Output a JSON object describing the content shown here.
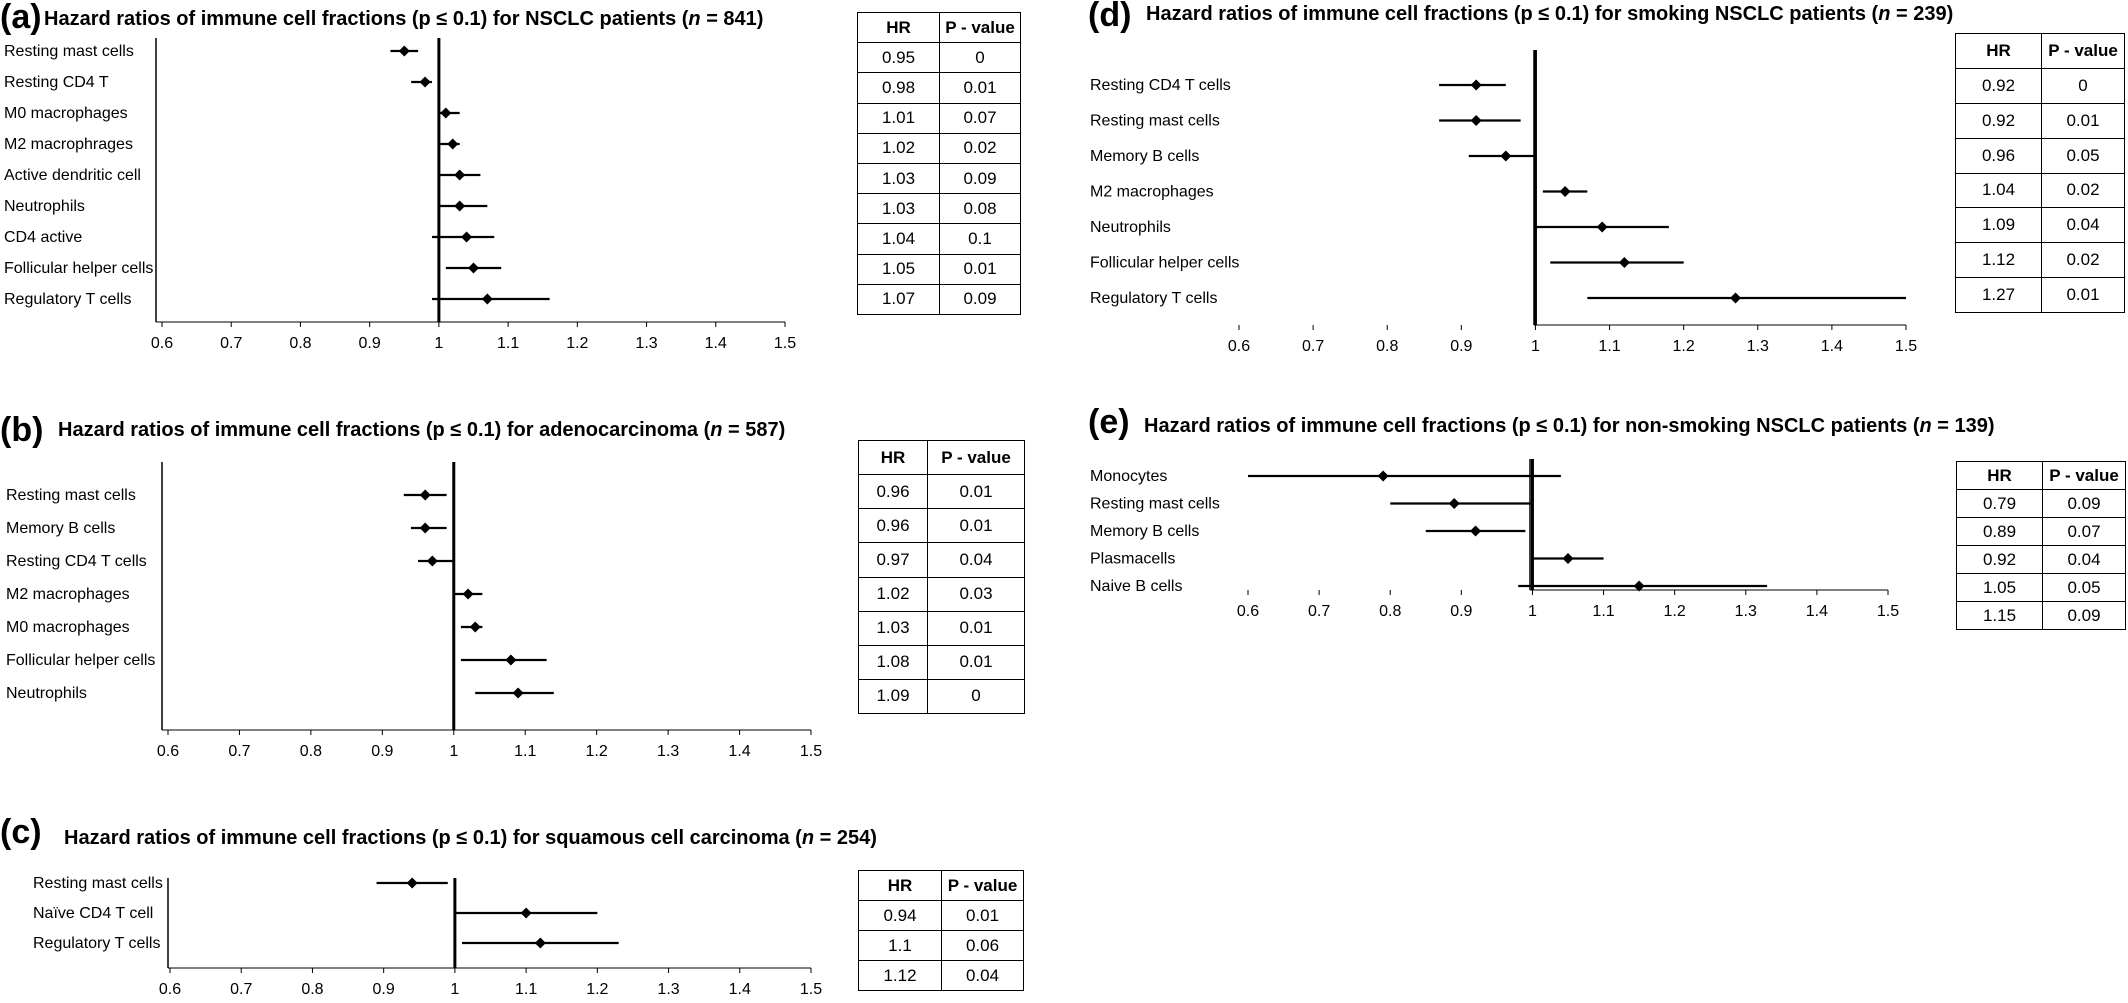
{
  "chart_data": [
    {
      "id": "a",
      "type": "forest",
      "panel_letter": "(a)",
      "title": "Hazard ratios of immune cell fractions (p ≤ 0.1) for NSCLC patients (n  = 841)",
      "title_pre": "Hazard ratios of immune cell fractions (p ≤ 0.1) for NSCLC patients (",
      "title_n": "n",
      "title_post": "  = 841)",
      "xticks": [
        "0.6",
        "0.7",
        "0.8",
        "0.9",
        "1",
        "1.1",
        "1.2",
        "1.3",
        "1.4",
        "1.5"
      ],
      "xlim": [
        0.6,
        1.5
      ],
      "reference_line": 1,
      "categories": [
        "Resting mast cells",
        "Resting CD4 T",
        "M0 macrophages",
        "M2 macrophrages",
        "Active dendritic cell",
        "Neutrophils",
        "CD4 active",
        "Follicular helper cells",
        "Regulatory T cells"
      ],
      "hr": [
        0.95,
        0.98,
        1.01,
        1.02,
        1.03,
        1.03,
        1.04,
        1.05,
        1.07
      ],
      "ci_low": [
        0.93,
        0.96,
        1.0,
        1.0,
        1.0,
        1.0,
        0.99,
        1.01,
        0.99
      ],
      "ci_high": [
        0.97,
        0.99,
        1.03,
        1.03,
        1.06,
        1.07,
        1.08,
        1.09,
        1.16
      ],
      "table": {
        "headers": [
          "HR",
          "P - value"
        ],
        "hr": [
          "0.95",
          "0.98",
          "1.01",
          "1.02",
          "1.03",
          "1.03",
          "1.04",
          "1.05",
          "1.07"
        ],
        "p": [
          "0",
          "0.01",
          "0.07",
          "0.02",
          "0.09",
          "0.08",
          "0.1",
          "0.01",
          "0.09"
        ]
      }
    },
    {
      "id": "b",
      "type": "forest",
      "panel_letter": "(b)",
      "title": "Hazard ratios of immune cell fractions (p ≤ 0.1) for adenocarcinoma (n  = 587)",
      "title_pre": "Hazard ratios of immune cell fractions (p ≤ 0.1) for adenocarcinoma (",
      "title_n": "n",
      "title_post": "  = 587)",
      "xticks": [
        "0.6",
        "0.7",
        "0.8",
        "0.9",
        "1",
        "1.1",
        "1.2",
        "1.3",
        "1.4",
        "1.5"
      ],
      "xlim": [
        0.6,
        1.5
      ],
      "reference_line": 1,
      "categories": [
        "Resting mast cells",
        "Memory B cells",
        "Resting CD4 T cells",
        "M2 macrophages",
        "M0 macrophages",
        "Follicular helper cells",
        "Neutrophils"
      ],
      "hr": [
        0.96,
        0.96,
        0.97,
        1.02,
        1.03,
        1.08,
        1.09
      ],
      "ci_low": [
        0.93,
        0.94,
        0.95,
        1.0,
        1.01,
        1.01,
        1.03
      ],
      "ci_high": [
        0.99,
        0.99,
        1.0,
        1.04,
        1.04,
        1.13,
        1.14
      ],
      "table": {
        "headers": [
          "HR",
          "P - value"
        ],
        "hr": [
          "0.96",
          "0.96",
          "0.97",
          "1.02",
          "1.03",
          "1.08",
          "1.09"
        ],
        "p": [
          "0.01",
          "0.01",
          "0.04",
          "0.03",
          "0.01",
          "0.01",
          "0"
        ]
      }
    },
    {
      "id": "c",
      "type": "forest",
      "panel_letter": "(c)",
      "title": "Hazard ratios of immune cell fractions (p ≤ 0.1) for squamous cell carcinoma (n  = 254)",
      "title_pre": "Hazard ratios of immune cell fractions (p ≤ 0.1) for squamous cell carcinoma (",
      "title_n": "n",
      "title_post": "  = 254)",
      "xticks": [
        "0.6",
        "0.7",
        "0.8",
        "0.9",
        "1",
        "1.1",
        "1.2",
        "1.3",
        "1.4",
        "1.5"
      ],
      "xlim": [
        0.6,
        1.5
      ],
      "reference_line": 1,
      "categories": [
        "Resting mast cells",
        "Naïve CD4 T cell",
        "Regulatory T cells"
      ],
      "hr": [
        0.94,
        1.1,
        1.12
      ],
      "ci_low": [
        0.89,
        1.0,
        1.01
      ],
      "ci_high": [
        0.99,
        1.2,
        1.23
      ],
      "table": {
        "headers": [
          "HR",
          "P - value"
        ],
        "hr": [
          "0.94",
          "1.1",
          "1.12"
        ],
        "p": [
          "0.01",
          "0.06",
          "0.04"
        ]
      }
    },
    {
      "id": "d",
      "type": "forest",
      "panel_letter": "(d)",
      "title": "Hazard ratios of immune cell fractions (p ≤ 0.1) for smoking NSCLC patients (n  = 239)",
      "title_pre": "Hazard ratios of immune cell fractions (p ≤ 0.1) for smoking NSCLC patients (",
      "title_n": "n",
      "title_post": "  = 239)",
      "xticks": [
        "0.6",
        "0.7",
        "0.8",
        "0.9",
        "1",
        "1.1",
        "1.2",
        "1.3",
        "1.4",
        "1.5"
      ],
      "xlim": [
        0.6,
        1.5
      ],
      "reference_line": 1,
      "categories": [
        "Resting CD4 T cells",
        "Resting mast cells",
        "Memory B cells",
        "M2 macrophages",
        "Neutrophils",
        "Follicular helper cells",
        "Regulatory T cells"
      ],
      "hr": [
        0.92,
        0.92,
        0.96,
        1.04,
        1.09,
        1.12,
        1.27
      ],
      "ci_low": [
        0.87,
        0.87,
        0.91,
        1.01,
        1.0,
        1.02,
        1.07
      ],
      "ci_high": [
        0.96,
        0.98,
        1.0,
        1.07,
        1.18,
        1.2,
        1.5
      ],
      "table": {
        "headers": [
          "HR",
          "P - value"
        ],
        "hr": [
          "0.92",
          "0.92",
          "0.96",
          "1.04",
          "1.09",
          "1.12",
          "1.27"
        ],
        "p": [
          "0",
          "0.01",
          "0.05",
          "0.02",
          "0.04",
          "0.02",
          "0.01"
        ]
      }
    },
    {
      "id": "e",
      "type": "forest",
      "panel_letter": "(e)",
      "title": "Hazard ratios of immune cell fractions (p ≤ 0.1) for non-smoking NSCLC patients (n  = 139)",
      "title_pre": "Hazard ratios of immune cell fractions (p ≤ 0.1) for non-smoking NSCLC patients (",
      "title_n": "n",
      "title_post": "  = 139)",
      "xticks": [
        "0.6",
        "0.7",
        "0.8",
        "0.9",
        "1",
        "1.1",
        "1.2",
        "1.3",
        "1.4",
        "1.5"
      ],
      "xlim": [
        0.6,
        1.5
      ],
      "reference_line": 1,
      "categories": [
        "Monocytes",
        "Resting mast cells",
        "Memory B cells",
        "Plasmacells",
        "Naive B cells"
      ],
      "hr": [
        0.79,
        0.89,
        0.92,
        1.05,
        1.15
      ],
      "ci_low": [
        0.6,
        0.8,
        0.85,
        1.0,
        0.98
      ],
      "ci_high": [
        1.04,
        1.0,
        0.99,
        1.1,
        1.33
      ],
      "table": {
        "headers": [
          "HR",
          "P - value"
        ],
        "hr": [
          "0.79",
          "0.89",
          "0.92",
          "1.05",
          "1.15"
        ],
        "p": [
          "0.09",
          "0.07",
          "0.04",
          "0.05",
          "0.09"
        ]
      }
    }
  ]
}
